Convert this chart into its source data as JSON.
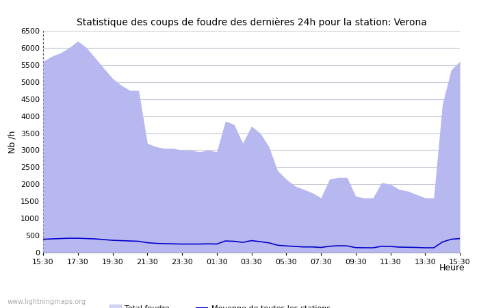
{
  "title": "Statistique des coups de foudre des dernières 24h pour la station: Verona",
  "xlabel": "Heure",
  "ylabel": "Nb /h",
  "ylim": [
    0,
    6500
  ],
  "yticks": [
    0,
    500,
    1000,
    1500,
    2000,
    2500,
    3000,
    3500,
    4000,
    4500,
    5000,
    5500,
    6000,
    6500
  ],
  "xtick_labels": [
    "15:30",
    "17:30",
    "19:30",
    "21:30",
    "23:30",
    "01:30",
    "03:30",
    "05:30",
    "07:30",
    "09:30",
    "11:30",
    "13:30",
    "15:30"
  ],
  "background_color": "#ffffff",
  "plot_bg_color": "#ffffff",
  "grid_color": "#c8c8d8",
  "total_foudre_color": "#d4d4f8",
  "verona_color": "#b8b8f0",
  "moyenne_color": "#0000cc",
  "watermark": "www.lightningmaps.org",
  "x_indices": [
    0,
    1,
    2,
    3,
    4,
    5,
    6,
    7,
    8,
    9,
    10,
    11,
    12,
    13,
    14,
    15,
    16,
    17,
    18,
    19,
    20,
    21,
    22,
    23,
    24,
    25,
    26,
    27,
    28,
    29,
    30,
    31,
    32,
    33,
    34,
    35,
    36,
    37,
    38,
    39,
    40,
    41,
    42,
    43,
    44,
    45,
    46,
    47,
    48
  ],
  "total_foudre": [
    5600,
    5750,
    5850,
    6000,
    6200,
    6000,
    5700,
    5400,
    5100,
    4900,
    4750,
    4750,
    3200,
    3100,
    3050,
    3050,
    3000,
    3000,
    2950,
    3000,
    2950,
    3850,
    3750,
    3200,
    3700,
    3500,
    3100,
    2400,
    2150,
    1950,
    1850,
    1750,
    1600,
    2150,
    2200,
    2200,
    1650,
    1600,
    1600,
    2050,
    2000,
    1850,
    1800,
    1700,
    1600,
    1600,
    4350,
    5350,
    5600
  ],
  "verona_foudre": [
    5600,
    5750,
    5850,
    6000,
    6200,
    6000,
    5700,
    5400,
    5100,
    4900,
    4750,
    4750,
    3200,
    3100,
    3050,
    3050,
    3000,
    3000,
    2950,
    3000,
    2950,
    3850,
    3750,
    3200,
    3700,
    3500,
    3100,
    2400,
    2150,
    1950,
    1850,
    1750,
    1600,
    2150,
    2200,
    2200,
    1650,
    1600,
    1600,
    2050,
    2000,
    1850,
    1800,
    1700,
    1600,
    1600,
    4350,
    5350,
    5600
  ],
  "moyenne": [
    390,
    400,
    410,
    420,
    420,
    410,
    400,
    380,
    360,
    350,
    340,
    330,
    290,
    270,
    260,
    255,
    250,
    250,
    250,
    255,
    250,
    340,
    330,
    300,
    350,
    320,
    285,
    215,
    195,
    180,
    165,
    165,
    150,
    185,
    200,
    195,
    145,
    140,
    140,
    185,
    180,
    160,
    155,
    150,
    140,
    140,
    310,
    390,
    410
  ]
}
